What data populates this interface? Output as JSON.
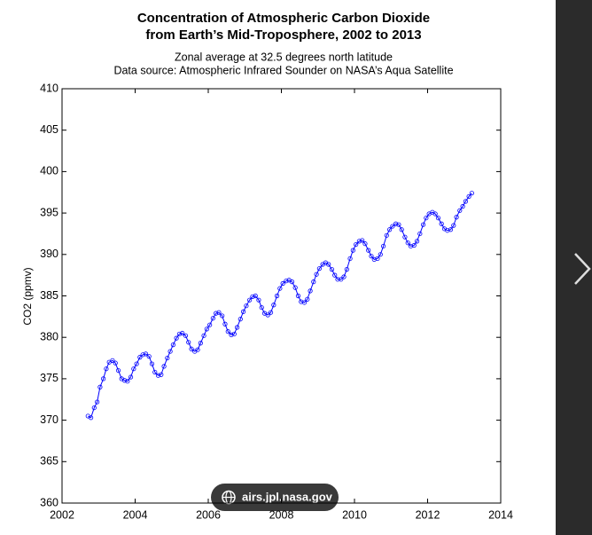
{
  "chart_data": {
    "type": "line",
    "title": [
      "Concentration of Atmospheric Carbon Dioxide",
      "from Earth’s Mid-Troposphere, 2002 to 2013"
    ],
    "subtitle": [
      "Zonal average at 32.5 degrees north latitude",
      "Data source: Atmospheric Infrared Sounder on NASA’s Aqua Satellite"
    ],
    "ylabel": "CO2 (ppmv)",
    "xlim": [
      2002,
      2014
    ],
    "xticks": [
      2002,
      2004,
      2006,
      2008,
      2010,
      2012,
      2014
    ],
    "ylim": [
      360,
      410
    ],
    "yticks": [
      360,
      365,
      370,
      375,
      380,
      385,
      390,
      395,
      400,
      405,
      410
    ],
    "color": "#0000ff",
    "marker": "circle",
    "x": [
      2002.71,
      2002.79,
      2002.88,
      2002.96,
      2003.04,
      2003.13,
      2003.21,
      2003.29,
      2003.38,
      2003.46,
      2003.54,
      2003.63,
      2003.71,
      2003.79,
      2003.88,
      2003.96,
      2004.04,
      2004.13,
      2004.21,
      2004.29,
      2004.38,
      2004.46,
      2004.54,
      2004.63,
      2004.71,
      2004.79,
      2004.88,
      2004.96,
      2005.04,
      2005.13,
      2005.21,
      2005.29,
      2005.38,
      2005.46,
      2005.54,
      2005.63,
      2005.71,
      2005.79,
      2005.88,
      2005.96,
      2006.04,
      2006.13,
      2006.21,
      2006.29,
      2006.38,
      2006.46,
      2006.54,
      2006.63,
      2006.71,
      2006.79,
      2006.88,
      2006.96,
      2007.04,
      2007.13,
      2007.21,
      2007.29,
      2007.38,
      2007.46,
      2007.54,
      2007.63,
      2007.71,
      2007.79,
      2007.88,
      2007.96,
      2008.04,
      2008.13,
      2008.21,
      2008.29,
      2008.38,
      2008.46,
      2008.54,
      2008.63,
      2008.71,
      2008.79,
      2008.88,
      2008.96,
      2009.04,
      2009.13,
      2009.21,
      2009.29,
      2009.38,
      2009.46,
      2009.54,
      2009.63,
      2009.71,
      2009.79,
      2009.88,
      2009.96,
      2010.04,
      2010.13,
      2010.21,
      2010.29,
      2010.38,
      2010.46,
      2010.54,
      2010.63,
      2010.71,
      2010.79,
      2010.88,
      2010.96,
      2011.04,
      2011.13,
      2011.21,
      2011.29,
      2011.38,
      2011.46,
      2011.54,
      2011.63,
      2011.71,
      2011.79,
      2011.88,
      2011.96,
      2012.04,
      2012.13,
      2012.21,
      2012.29,
      2012.38,
      2012.46,
      2012.54,
      2012.63,
      2012.71,
      2012.79,
      2012.88,
      2012.96,
      2013.04,
      2013.13,
      2013.21
    ],
    "values": [
      370.5,
      370.3,
      371.5,
      372.2,
      374.0,
      375.0,
      376.2,
      377.0,
      377.2,
      376.9,
      376.0,
      375.0,
      374.8,
      374.7,
      375.2,
      376.2,
      376.8,
      377.6,
      377.9,
      378.0,
      377.7,
      376.8,
      375.8,
      375.4,
      375.5,
      376.5,
      377.5,
      378.3,
      379.1,
      379.9,
      380.4,
      380.5,
      380.2,
      379.4,
      378.6,
      378.3,
      378.5,
      379.3,
      380.2,
      381.0,
      381.5,
      382.3,
      382.9,
      383.0,
      382.6,
      381.6,
      380.7,
      380.3,
      380.4,
      381.2,
      382.2,
      383.1,
      383.8,
      384.5,
      384.9,
      385.0,
      384.5,
      383.6,
      382.9,
      382.7,
      383.0,
      383.9,
      385.0,
      385.9,
      386.5,
      386.8,
      386.9,
      386.7,
      386.0,
      385.0,
      384.3,
      384.2,
      384.6,
      385.6,
      386.7,
      387.6,
      388.3,
      388.8,
      389.0,
      388.8,
      388.2,
      387.5,
      387.0,
      387.0,
      387.3,
      388.2,
      389.5,
      390.5,
      391.2,
      391.6,
      391.7,
      391.3,
      390.5,
      389.8,
      389.4,
      389.5,
      390.0,
      391.0,
      392.3,
      393.0,
      393.4,
      393.7,
      393.6,
      393.0,
      392.1,
      391.4,
      391.0,
      391.1,
      391.6,
      392.5,
      393.6,
      394.4,
      394.9,
      395.1,
      394.9,
      394.4,
      393.7,
      393.1,
      392.9,
      393.0,
      393.5,
      394.5,
      395.3,
      395.8,
      396.4,
      397.0,
      397.4
    ]
  },
  "source_chip": "airs.jpl.nasa.gov"
}
